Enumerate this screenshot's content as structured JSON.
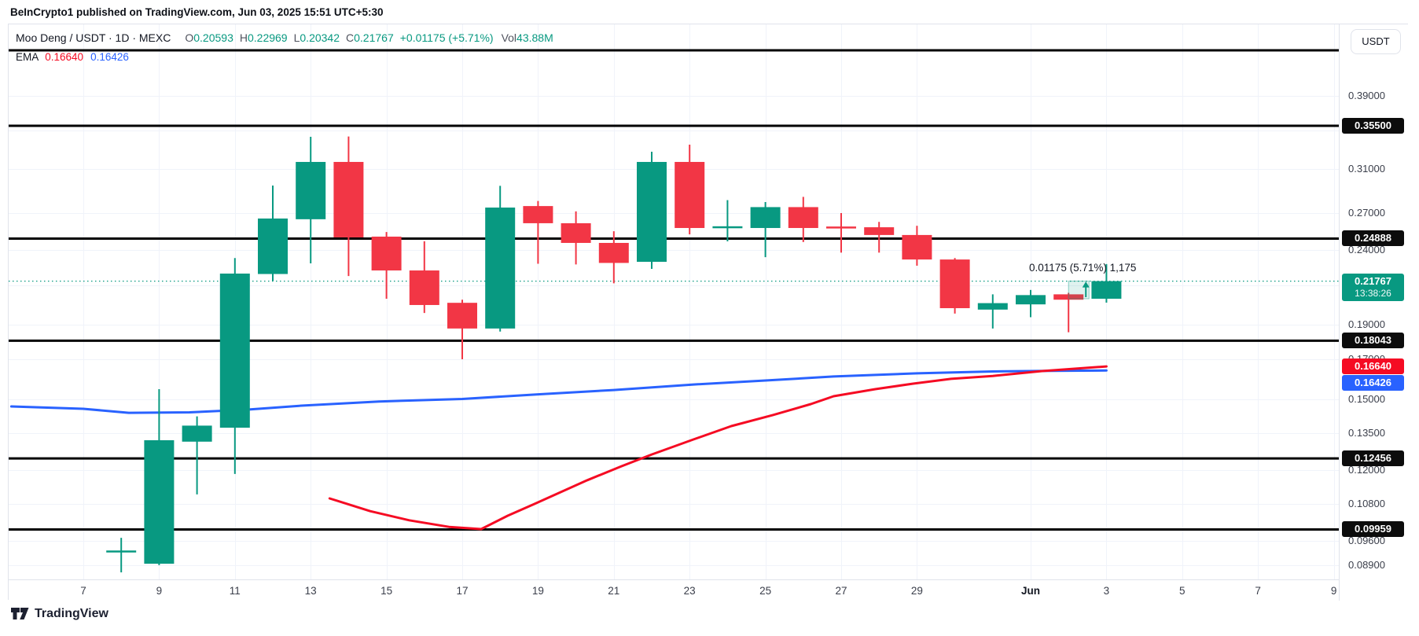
{
  "credit": "BeInCrypto1 published on TradingView.com, Jun 03, 2025 15:51 UTC+5:30",
  "legend": {
    "symbol": "Moo Deng / USDT · 1D · MEXC",
    "ohlc": [
      {
        "label": "O",
        "value": "0.20593"
      },
      {
        "label": "H",
        "value": "0.22969"
      },
      {
        "label": "L",
        "value": "0.20342"
      },
      {
        "label": "C",
        "value": "0.21767"
      }
    ],
    "change": "+0.01175 (+5.71%)",
    "vol_label": "Vol",
    "vol_value": "43.88M",
    "ema_label": "EMA",
    "ema_values": [
      {
        "value": "0.16640",
        "color": "#f50b23"
      },
      {
        "value": "0.16426",
        "color": "#2962ff"
      }
    ]
  },
  "colors": {
    "up": "#089981",
    "down": "#F23645",
    "ema_fast": "#2962ff",
    "ema_slow": "#f50b23",
    "level_line": "#000000",
    "grid": "#F0F3FA",
    "last_price": "#089981",
    "badge_black": "#0c0c0c"
  },
  "price_axis": {
    "currency_button": "USDT",
    "ticks": [
      {
        "label": "0.39000",
        "price": 0.39
      },
      {
        "label": "0.31000",
        "price": 0.31
      },
      {
        "label": "0.27000",
        "price": 0.27
      },
      {
        "label": "0.24000",
        "price": 0.24
      },
      {
        "label": "0.19000",
        "price": 0.19
      },
      {
        "label": "0.17000",
        "price": 0.17
      },
      {
        "label": "0.15000",
        "price": 0.15
      },
      {
        "label": "0.13500",
        "price": 0.135
      },
      {
        "label": "0.12000",
        "price": 0.12
      },
      {
        "label": "0.10800",
        "price": 0.108
      },
      {
        "label": "0.09600",
        "price": 0.096
      },
      {
        "label": "0.08900",
        "price": 0.089
      }
    ],
    "level_badges": [
      {
        "label": "0.35500",
        "price": 0.355
      },
      {
        "label": "0.24888",
        "price": 0.24888
      },
      {
        "label": "0.18043",
        "price": 0.18043
      },
      {
        "label": "0.12456",
        "price": 0.12456
      },
      {
        "label": "0.09959",
        "price": 0.09959
      }
    ],
    "last_price_badge": {
      "label": "0.21767",
      "countdown": "13:38:26",
      "price": 0.21767
    },
    "ema_badges": [
      {
        "label": "0.16640",
        "price": 0.1664,
        "color": "#f50b23"
      },
      {
        "label": "0.16426",
        "price": 0.16426,
        "color": "#2962ff",
        "pushed_below_prev": true
      }
    ]
  },
  "time_axis": {
    "labels": [
      {
        "text": "7",
        "day": 0
      },
      {
        "text": "9",
        "day": 2
      },
      {
        "text": "11",
        "day": 4
      },
      {
        "text": "13",
        "day": 6
      },
      {
        "text": "15",
        "day": 8
      },
      {
        "text": "17",
        "day": 10
      },
      {
        "text": "19",
        "day": 12
      },
      {
        "text": "21",
        "day": 14
      },
      {
        "text": "23",
        "day": 16
      },
      {
        "text": "25",
        "day": 18
      },
      {
        "text": "27",
        "day": 20
      },
      {
        "text": "29",
        "day": 22
      },
      {
        "text": "Jun",
        "day": 25,
        "bold": true
      },
      {
        "text": "3",
        "day": 27
      },
      {
        "text": "5",
        "day": 29
      },
      {
        "text": "7",
        "day": 31
      },
      {
        "text": "9",
        "day": 33
      }
    ]
  },
  "chart_data": {
    "type": "candlestick",
    "title": "Moo Deng / USDT · 1D · MEXC",
    "scale": "logarithmic",
    "interval": "1D",
    "exchange": "MEXC",
    "last_price": 0.21767,
    "grid_prices": [
      0.39,
      0.35,
      0.31,
      0.27,
      0.24,
      0.215,
      0.19,
      0.17,
      0.15,
      0.135,
      0.12,
      0.108,
      0.096,
      0.089
    ],
    "levels": [
      0.4502,
      0.355,
      0.24888,
      0.18043,
      0.12456,
      0.09959
    ],
    "candles": [
      {
        "t": "May 8",
        "d": 1,
        "o": 0.0928,
        "h": 0.097,
        "l": 0.087,
        "c": 0.0932
      },
      {
        "t": "May 9",
        "d": 2,
        "o": 0.0894,
        "h": 0.1549,
        "l": 0.089,
        "c": 0.1319
      },
      {
        "t": "May 10",
        "d": 3,
        "o": 0.1313,
        "h": 0.1422,
        "l": 0.1112,
        "c": 0.1381
      },
      {
        "t": "May 11",
        "d": 4,
        "o": 0.1372,
        "h": 0.2341,
        "l": 0.1186,
        "c": 0.2229
      },
      {
        "t": "May 12",
        "d": 5,
        "o": 0.2226,
        "h": 0.2941,
        "l": 0.2177,
        "c": 0.2651
      },
      {
        "t": "May 13",
        "d": 6,
        "o": 0.2645,
        "h": 0.3429,
        "l": 0.2302,
        "c": 0.3168
      },
      {
        "t": "May 14",
        "d": 7,
        "o": 0.3168,
        "h": 0.3432,
        "l": 0.2212,
        "c": 0.2498
      },
      {
        "t": "May 15",
        "d": 8,
        "o": 0.2504,
        "h": 0.2541,
        "l": 0.2059,
        "c": 0.2251
      },
      {
        "t": "May 16",
        "d": 9,
        "o": 0.2251,
        "h": 0.2468,
        "l": 0.1969,
        "c": 0.2019
      },
      {
        "t": "May 17",
        "d": 10,
        "o": 0.2033,
        "h": 0.2053,
        "l": 0.1702,
        "c": 0.1875
      },
      {
        "t": "May 18",
        "d": 11,
        "o": 0.1875,
        "h": 0.2938,
        "l": 0.1857,
        "c": 0.2744
      },
      {
        "t": "May 19",
        "d": 12,
        "o": 0.2757,
        "h": 0.2802,
        "l": 0.2299,
        "c": 0.2612
      },
      {
        "t": "May 20",
        "d": 13,
        "o": 0.2612,
        "h": 0.2711,
        "l": 0.2294,
        "c": 0.2455
      },
      {
        "t": "May 21",
        "d": 14,
        "o": 0.2455,
        "h": 0.2547,
        "l": 0.2162,
        "c": 0.2305
      },
      {
        "t": "May 22",
        "d": 15,
        "o": 0.2313,
        "h": 0.3271,
        "l": 0.2262,
        "c": 0.3168
      },
      {
        "t": "May 23",
        "d": 16,
        "o": 0.3168,
        "h": 0.3345,
        "l": 0.2522,
        "c": 0.2573
      },
      {
        "t": "May 24",
        "d": 17,
        "o": 0.258,
        "h": 0.2809,
        "l": 0.2467,
        "c": 0.2587
      },
      {
        "t": "May 25",
        "d": 18,
        "o": 0.2573,
        "h": 0.2792,
        "l": 0.2347,
        "c": 0.2748
      },
      {
        "t": "May 26",
        "d": 19,
        "o": 0.2748,
        "h": 0.2838,
        "l": 0.2462,
        "c": 0.2573
      },
      {
        "t": "May 27",
        "d": 20,
        "o": 0.2585,
        "h": 0.2697,
        "l": 0.2381,
        "c": 0.2573
      },
      {
        "t": "May 28",
        "d": 21,
        "o": 0.2579,
        "h": 0.2623,
        "l": 0.2381,
        "c": 0.2517
      },
      {
        "t": "May 29",
        "d": 22,
        "o": 0.2517,
        "h": 0.2591,
        "l": 0.2285,
        "c": 0.233
      },
      {
        "t": "May 30",
        "d": 23,
        "o": 0.233,
        "h": 0.2341,
        "l": 0.1965,
        "c": 0.1999
      },
      {
        "t": "May 31",
        "d": 24,
        "o": 0.199,
        "h": 0.2088,
        "l": 0.1875,
        "c": 0.2031
      },
      {
        "t": "Jun 1",
        "d": 25,
        "o": 0.2023,
        "h": 0.2117,
        "l": 0.1943,
        "c": 0.2083
      },
      {
        "t": "Jun 2",
        "d": 26,
        "o": 0.2088,
        "h": 0.2098,
        "l": 0.1853,
        "c": 0.2053
      },
      {
        "t": "Jun 3",
        "d": 27,
        "o": 0.20593,
        "h": 0.22969,
        "l": 0.20342,
        "c": 0.21767
      }
    ],
    "ema_series": [
      {
        "name": "EMA blue (last 0.16426)",
        "color": "#2962ff",
        "points": [
          [
            -1.9,
            0.1467
          ],
          [
            0,
            0.1456
          ],
          [
            1.2,
            0.1438
          ],
          [
            2.8,
            0.144
          ],
          [
            4.3,
            0.1452
          ],
          [
            5.7,
            0.147
          ],
          [
            7.8,
            0.149
          ],
          [
            10,
            0.1502
          ],
          [
            12,
            0.1524
          ],
          [
            14,
            0.1545
          ],
          [
            16.1,
            0.1572
          ],
          [
            18,
            0.1592
          ],
          [
            19.8,
            0.1612
          ],
          [
            22,
            0.1628
          ],
          [
            24,
            0.1638
          ],
          [
            25.5,
            0.1641
          ],
          [
            27,
            0.16426
          ]
        ]
      },
      {
        "name": "EMA red (last 0.16640)",
        "color": "#f50b23",
        "points": [
          [
            6.5,
            0.1098
          ],
          [
            7.57,
            0.1055
          ],
          [
            8.6,
            0.1025
          ],
          [
            9.65,
            0.1004
          ],
          [
            10.5,
            0.0997
          ],
          [
            11.2,
            0.104
          ],
          [
            11.9,
            0.1079
          ],
          [
            13.3,
            0.1163
          ],
          [
            14.2,
            0.1215
          ],
          [
            15.0,
            0.1261
          ],
          [
            16.1,
            0.1322
          ],
          [
            17.1,
            0.1379
          ],
          [
            18.2,
            0.1428
          ],
          [
            19.2,
            0.1478
          ],
          [
            19.8,
            0.1515
          ],
          [
            20.9,
            0.1549
          ],
          [
            21.9,
            0.1576
          ],
          [
            22.9,
            0.16
          ],
          [
            24.0,
            0.1615
          ],
          [
            25.3,
            0.164
          ],
          [
            27,
            0.1664
          ]
        ]
      }
    ],
    "measure": {
      "text": "0.01175 (5.71%) 1,175",
      "from_price": 0.20592,
      "to_price": 0.21767,
      "from_day": 26.0,
      "to_day": 26.54
    }
  },
  "footer": {
    "logo_text": "TradingView"
  }
}
